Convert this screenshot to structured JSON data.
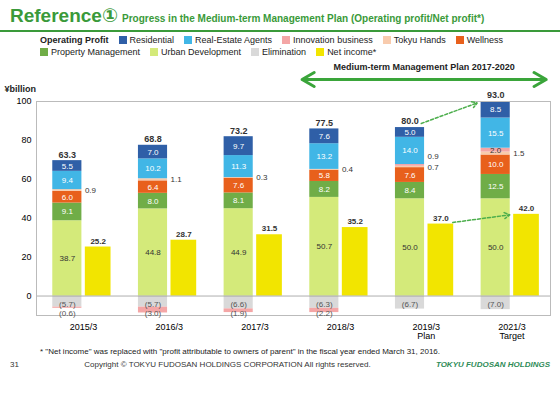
{
  "chart_data": {
    "type": "bar",
    "title": "Reference①",
    "subtitle": "Progress in the Medium-term Management Plan (Operating profit/Net profit*)",
    "y_label": "¥billion",
    "categories": [
      "2015/3",
      "2016/3",
      "2017/3",
      "2018/3",
      "2019/3\nPlan",
      "2021/3\nTarget"
    ],
    "ylim": [
      -10,
      100
    ],
    "yticks": [
      0,
      20,
      40,
      60,
      80,
      100
    ],
    "stacked": true,
    "data_labels": true,
    "grid": false,
    "legend": "top-left",
    "legend_title": "Operating Profit",
    "series": [
      {
        "name": "Residential",
        "color": "#2f5fa7",
        "values": [
          5.5,
          7.0,
          9.7,
          7.6,
          5.0,
          8.5
        ],
        "value_labels": [
          "5.5",
          "7.0",
          "9.7",
          "7.6",
          "5.0",
          "8.5"
        ]
      },
      {
        "name": "Real-Estate Agents",
        "color": "#41b6e6",
        "values": [
          9.4,
          10.2,
          11.3,
          13.2,
          14.0,
          15.5
        ],
        "value_labels": [
          "9.4",
          "10.2",
          "11.3",
          "13.2",
          "14.0",
          "15.5"
        ]
      },
      {
        "name": "Innovation business",
        "color": "#f4a6a6",
        "values": [
          -0.6,
          -3.0,
          -1.9,
          -2.2,
          0.9,
          2.0
        ],
        "value_labels": [
          "(0.6)",
          "(3.0)",
          "(1.9)",
          "(2.2)",
          "0.9",
          "2.0"
        ]
      },
      {
        "name": "Tokyu Hands",
        "color": "#f8cbad",
        "values": [
          0.9,
          1.1,
          0.3,
          0.4,
          0.7,
          1.5
        ],
        "value_labels": [
          "0.9",
          "1.1",
          "0.3",
          "0.4",
          "0.7",
          "1.5"
        ]
      },
      {
        "name": "Wellness",
        "color": "#e8601c",
        "values": [
          6.0,
          6.4,
          7.6,
          5.8,
          7.6,
          10.0
        ],
        "value_labels": [
          "6.0",
          "6.4",
          "7.6",
          "5.8",
          "7.6",
          "10.0"
        ]
      },
      {
        "name": "Property Management",
        "color": "#70ad47",
        "values": [
          9.1,
          8.0,
          8.1,
          8.2,
          8.4,
          12.5
        ],
        "value_labels": [
          "9.1",
          "8.0",
          "8.1",
          "8.2",
          "8.4",
          "12.5"
        ]
      },
      {
        "name": "Urban Development",
        "color": "#d4ea7a",
        "values": [
          38.7,
          44.8,
          44.9,
          50.7,
          50.0,
          50.0
        ],
        "value_labels": [
          "38.7",
          "44.8",
          "44.9",
          "50.7",
          "50.0",
          "50.0"
        ]
      },
      {
        "name": "Elimination",
        "color": "#d9d9d9",
        "values": [
          -5.7,
          -5.7,
          -6.6,
          -6.3,
          -6.7,
          -7.0
        ],
        "value_labels": [
          "(5.7)",
          "(5.7)",
          "(6.6)",
          "(6.3)",
          "(6.7)",
          "(7.0)"
        ]
      }
    ],
    "totals": {
      "values": [
        63.3,
        68.8,
        73.2,
        77.5,
        80.0,
        93.0
      ],
      "value_labels": [
        "63.3",
        "68.8",
        "73.2",
        "77.5",
        "80.0",
        "93.0"
      ]
    },
    "net_income": {
      "name": "Net income*",
      "color": "#f2e500",
      "values": [
        25.2,
        28.7,
        31.5,
        35.2,
        37.0,
        42.0
      ],
      "value_labels": [
        "25.2",
        "28.7",
        "31.5",
        "35.2",
        "37.0",
        "42.0"
      ]
    },
    "annotation": "Medium-term Management Plan 2017-2020",
    "footnote": "* \"Net income\" was replaced with \"profit attributable to owners of parent\" in the fiscal year ended March 31, 2016."
  },
  "page": {
    "number": "31",
    "copyright": "Copyright © TOKYU FUDOSAN HOLDINGS CORPORATION All rights reserved.",
    "logo": "TOKYU FUDOSAN HOLDINGS"
  }
}
